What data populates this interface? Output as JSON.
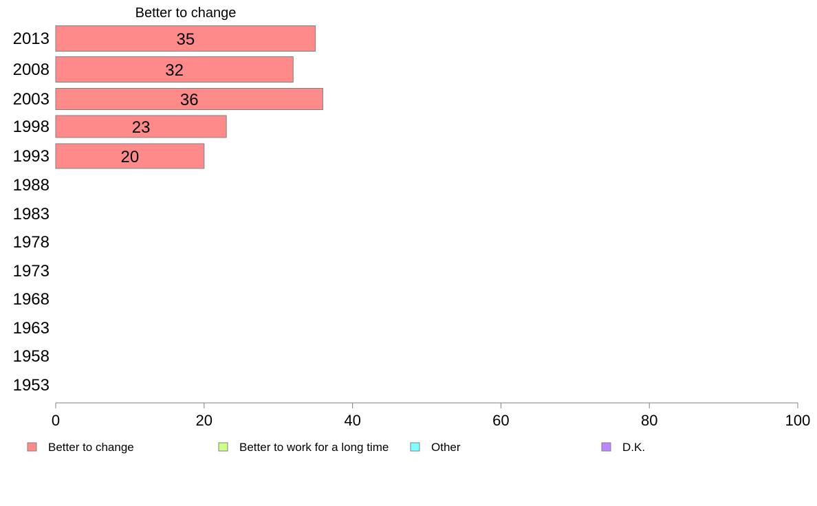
{
  "chart_data": {
    "type": "bar",
    "orientation": "horizontal",
    "stacked": true,
    "categories": [
      "2013",
      "2008",
      "2003",
      "1998",
      "1993",
      "1988",
      "1983",
      "1978",
      "1973",
      "1968",
      "1963",
      "1958",
      "1953"
    ],
    "series": [
      {
        "name": "Better to change",
        "color": "#ff8a8a",
        "values": [
          35,
          32,
          36,
          23,
          20,
          null,
          null,
          null,
          null,
          null,
          null,
          null,
          null
        ]
      },
      {
        "name": "Better to work for a long time",
        "color": "#ccff88",
        "values": [
          null,
          null,
          null,
          null,
          null,
          null,
          null,
          null,
          null,
          null,
          null,
          null,
          null
        ]
      },
      {
        "name": "Other",
        "color": "#7fffff",
        "values": [
          null,
          null,
          null,
          null,
          null,
          null,
          null,
          null,
          null,
          null,
          null,
          null,
          null
        ]
      },
      {
        "name": "D.K.",
        "color": "#bb88ff",
        "values": [
          null,
          null,
          null,
          null,
          null,
          null,
          null,
          null,
          null,
          null,
          null,
          null,
          null
        ]
      }
    ],
    "column_header": "Better to change",
    "xlim": [
      0,
      100
    ],
    "xticks": [
      0,
      20,
      40,
      60,
      80,
      100
    ],
    "grid": false,
    "legend_position": "bottom"
  }
}
